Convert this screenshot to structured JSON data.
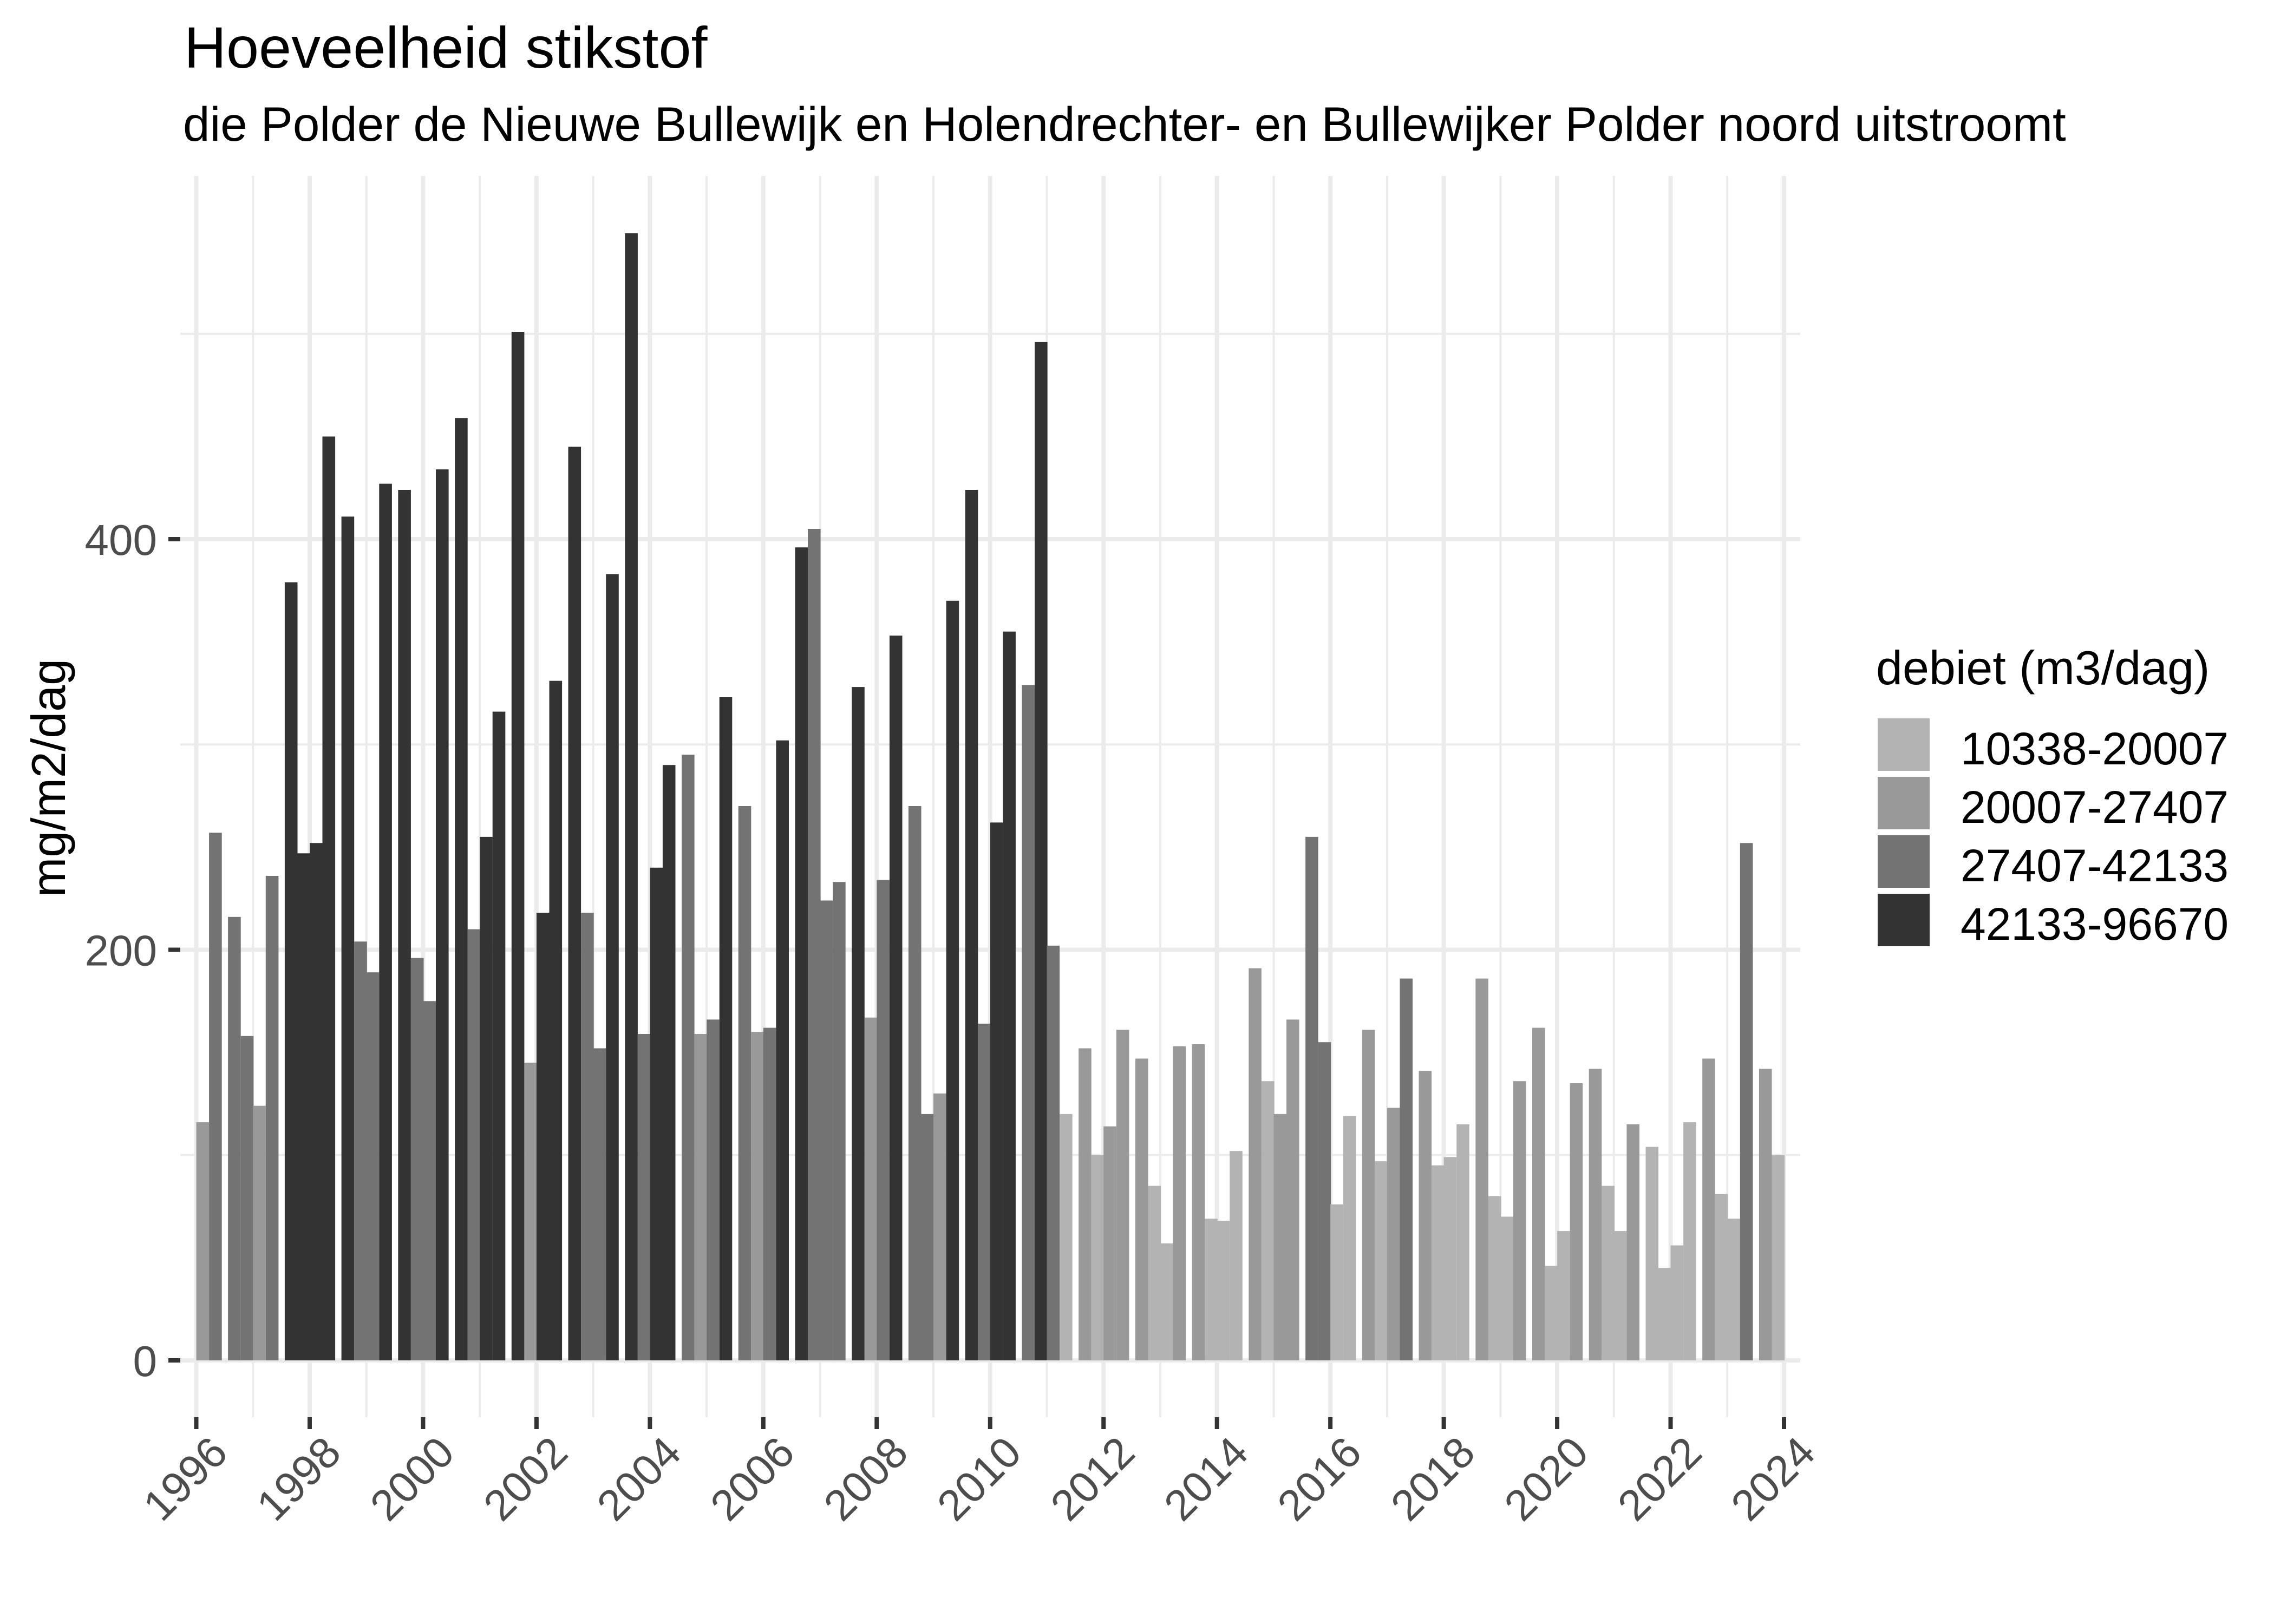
{
  "title": "Hoeveelheid stikstof",
  "subtitle": "die Polder de Nieuwe Bullewijk en Holendrechter- en Bullewijker Polder noord uitstroomt",
  "y_axis_label": "mg/m2/dag",
  "legend": {
    "title": "debiet (m3/dag)",
    "items": [
      {
        "label": "10338-20007",
        "color": "#B3B3B3"
      },
      {
        "label": "20007-27407",
        "color": "#999999"
      },
      {
        "label": "27407-42133",
        "color": "#737373"
      },
      {
        "label": "42133-96670",
        "color": "#333333"
      }
    ]
  },
  "chart_data": {
    "type": "bar",
    "title": "Hoeveelheid stikstof",
    "subtitle": "die Polder de Nieuwe Bullewijk en Holendrechter- en Bullewijker Polder noord uitstroomt",
    "xlabel": "",
    "ylabel": "mg/m2/dag",
    "ylim": [
      0,
      560
    ],
    "y_ticks": [
      0,
      200,
      400
    ],
    "y_minor_gridlines": [
      100,
      300,
      500
    ],
    "x_ticks": [
      "1996",
      "1998",
      "2000",
      "2002",
      "2004",
      "2006",
      "2008",
      "2010",
      "2012",
      "2014",
      "2016",
      "2018",
      "2020",
      "2022",
      "2024"
    ],
    "x_tick_rotation": 45,
    "grid": true,
    "legend_position": "right",
    "fill_legend_title": "debiet (m3/dag)",
    "fill_categories": [
      "10338-20007",
      "20007-27407",
      "27407-42133",
      "42133-96670"
    ],
    "fill_colors": [
      "#B3B3B3",
      "#999999",
      "#737373",
      "#333333"
    ],
    "period": "quarter",
    "years": [
      1996,
      1997,
      1998,
      1999,
      2000,
      2001,
      2002,
      2003,
      2004,
      2005,
      2006,
      2007,
      2008,
      2009,
      2010,
      2011,
      2012,
      2013,
      2014,
      2015,
      2016,
      2017,
      2018,
      2019,
      2020,
      2021,
      2022,
      2023
    ],
    "values": [
      [
        116,
        257,
        216,
        158
      ],
      [
        124,
        236,
        379,
        247
      ],
      [
        252,
        450,
        411,
        204
      ],
      [
        189,
        427,
        424,
        196
      ],
      [
        175,
        434,
        459,
        210
      ],
      [
        255,
        316,
        501,
        145
      ],
      [
        218,
        331,
        445,
        218
      ],
      [
        152,
        383,
        549,
        159
      ],
      [
        240,
        290,
        295,
        159
      ],
      [
        166,
        323,
        270,
        160
      ],
      [
        162,
        302,
        396,
        405
      ],
      [
        224,
        233,
        328,
        167
      ],
      [
        234,
        353,
        270,
        120
      ],
      [
        130,
        370,
        424,
        164
      ],
      [
        262,
        355,
        329,
        496
      ],
      [
        202,
        120,
        152,
        100
      ],
      [
        114,
        161,
        147,
        85
      ],
      [
        57,
        153,
        154,
        69
      ],
      [
        68,
        102,
        191,
        136
      ],
      [
        120,
        166,
        255,
        155
      ],
      [
        76,
        119,
        161,
        97
      ],
      [
        123,
        186,
        141,
        95
      ],
      [
        99,
        115,
        186,
        80
      ],
      [
        70,
        136,
        162,
        46
      ],
      [
        63,
        135,
        142,
        85
      ],
      [
        63,
        115,
        104,
        45
      ],
      [
        56,
        116,
        147,
        81
      ],
      [
        69,
        252,
        142,
        100
      ]
    ],
    "debiet_class": [
      [
        2,
        3,
        3,
        3
      ],
      [
        2,
        3,
        4,
        4
      ],
      [
        4,
        4,
        4,
        3
      ],
      [
        3,
        4,
        4,
        3
      ],
      [
        3,
        4,
        4,
        3
      ],
      [
        4,
        4,
        4,
        2
      ],
      [
        4,
        4,
        4,
        3
      ],
      [
        3,
        4,
        4,
        3
      ],
      [
        4,
        4,
        3,
        2
      ],
      [
        3,
        4,
        3,
        2
      ],
      [
        3,
        4,
        4,
        3
      ],
      [
        3,
        3,
        4,
        2
      ],
      [
        3,
        4,
        3,
        3
      ],
      [
        2,
        4,
        4,
        3
      ],
      [
        4,
        4,
        3,
        4
      ],
      [
        3,
        1,
        2,
        1
      ],
      [
        2,
        2,
        2,
        1
      ],
      [
        1,
        2,
        2,
        1
      ],
      [
        1,
        1,
        2,
        1
      ],
      [
        2,
        2,
        3,
        3
      ],
      [
        1,
        1,
        2,
        1
      ],
      [
        2,
        3,
        2,
        1
      ],
      [
        1,
        1,
        2,
        1
      ],
      [
        1,
        2,
        2,
        1
      ],
      [
        1,
        2,
        2,
        1
      ],
      [
        1,
        2,
        1,
        1
      ],
      [
        1,
        1,
        2,
        1
      ],
      [
        1,
        3,
        2,
        1
      ]
    ]
  }
}
